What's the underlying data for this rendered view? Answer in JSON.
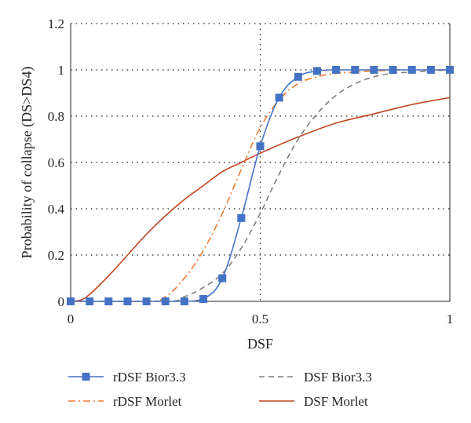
{
  "chart_data": {
    "type": "line",
    "title": "",
    "xlabel": "DSF",
    "ylabel": "Probability of collapse (DS>DS4)",
    "xlim": [
      0,
      1
    ],
    "ylim": [
      0,
      1.2
    ],
    "x_ticks": [
      "0",
      "0.5",
      "1"
    ],
    "y_ticks": [
      "0",
      "0.2",
      "0.4",
      "0.6",
      "0.8",
      "1",
      "1.2"
    ],
    "grid": "dotted",
    "legend_placement": "bottom",
    "series": [
      {
        "name": "rDSF Bior3.3",
        "color": "#4472c4",
        "style": "solid-with-square-markers",
        "x": [
          0,
          0.05,
          0.1,
          0.15,
          0.2,
          0.25,
          0.3,
          0.35,
          0.4,
          0.45,
          0.5,
          0.55,
          0.6,
          0.65,
          0.7,
          0.75,
          0.8,
          0.85,
          0.9,
          0.95,
          1.0
        ],
        "y": [
          0,
          0,
          0,
          0,
          0,
          0,
          0,
          0.01,
          0.1,
          0.36,
          0.67,
          0.88,
          0.97,
          0.995,
          1.0,
          1.0,
          1.0,
          1.0,
          1.0,
          1.0,
          1.0
        ]
      },
      {
        "name": "DSF Bior3.3",
        "color": "#7f7f7f",
        "style": "dashed",
        "x": [
          0,
          0.25,
          0.3,
          0.35,
          0.4,
          0.45,
          0.5,
          0.55,
          0.6,
          0.65,
          0.7,
          0.75,
          0.8,
          0.85,
          0.9,
          0.95,
          1.0
        ],
        "y": [
          0,
          0,
          0.02,
          0.06,
          0.12,
          0.23,
          0.38,
          0.55,
          0.7,
          0.81,
          0.89,
          0.94,
          0.97,
          0.985,
          0.99,
          0.995,
          1.0
        ]
      },
      {
        "name": "rDSF Morlet",
        "color": "#ed7d31",
        "style": "dash-dot",
        "x": [
          0,
          0.2,
          0.25,
          0.3,
          0.35,
          0.4,
          0.45,
          0.5,
          0.55,
          0.6,
          0.65,
          0.7,
          0.75,
          0.8,
          0.9,
          1.0
        ],
        "y": [
          0,
          0,
          0.02,
          0.1,
          0.22,
          0.38,
          0.57,
          0.75,
          0.87,
          0.94,
          0.97,
          0.985,
          0.99,
          0.995,
          1.0,
          1.0
        ]
      },
      {
        "name": "DSF Morlet",
        "color": "#c0461f",
        "style": "solid",
        "x": [
          0,
          0.025,
          0.05,
          0.1,
          0.15,
          0.2,
          0.25,
          0.3,
          0.35,
          0.4,
          0.45,
          0.5,
          0.6,
          0.7,
          0.8,
          0.9,
          1.0
        ],
        "y": [
          0,
          0.005,
          0.03,
          0.11,
          0.2,
          0.29,
          0.37,
          0.44,
          0.5,
          0.56,
          0.6,
          0.64,
          0.71,
          0.77,
          0.81,
          0.85,
          0.88
        ]
      }
    ]
  }
}
